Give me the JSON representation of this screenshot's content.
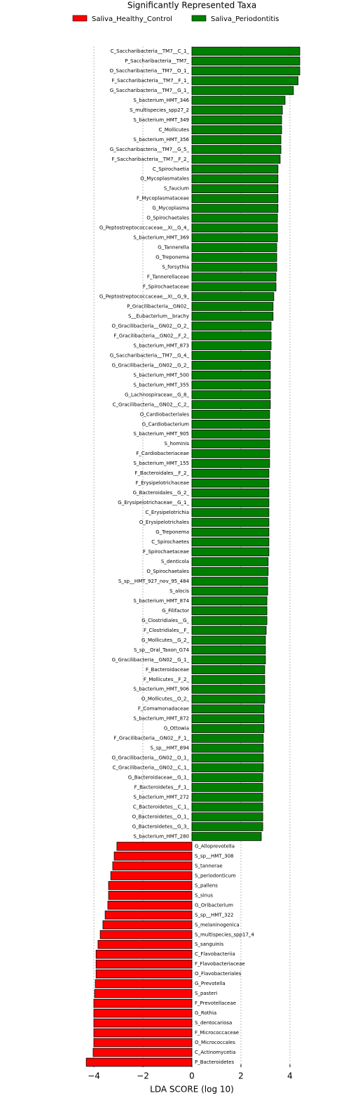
{
  "chart_data": {
    "type": "bar",
    "orientation": "horizontal",
    "title": "Significantly Represented Taxa",
    "x_label": "LDA SCORE (log 10)",
    "categories": [
      "C_Saccharibacteria__TM7__C_1_",
      "P_Saccharibacteria__TM7_",
      "O_Saccharibacteria__TM7__O_1_",
      "F_Saccharibacteria__TM7__F_1_",
      "G_Saccharibacteria__TM7__G_1_",
      "S_bacterium_HMT_346",
      "S_multispecies_spp27_2",
      "S_bacterium_HMT_349",
      "C_Mollicutes",
      "S_bacterium_HMT_356",
      "G_Saccharibacteria__TM7__G_5_",
      "F_Saccharibacteria__TM7__F_2_",
      "C_Spirochaetia",
      "O_Mycoplasmatales",
      "S_faucium",
      "F_Mycoplasmataceae",
      "G_Mycoplasma",
      "O_Spirochaetales",
      "G_Peptostreptococcaceae__XI__G_4_",
      "S_bacterium_HMT_369",
      "G_Tannerella",
      "G_Treponema",
      "S_forsythia",
      "F_Tannerellaceae",
      "F_Spirochaetaceae",
      "G_Peptostreptococcaceae__XI__G_9_",
      "P_Gracilibacteria__GN02_",
      "S__Eubacterium__brachy",
      "O_Gracilibacteria__GN02__O_2_",
      "F_Gracilibacteria__GN02__F_2_",
      "S_bacterium_HMT_873",
      "G_Saccharibacteria__TM7__G_4_",
      "G_Gracilibacteria__GN02__G_2_",
      "S_bacterium_HMT_500",
      "S_bacterium_HMT_355",
      "G_Lachnospiraceae__G_8_",
      "C_Gracilibacteria__GN02__C_2_",
      "O_Cardiobacteriales",
      "G_Cardiobacterium",
      "S_bacterium_HMT_905",
      "S_hominis",
      "F_Cardiobacteriaceae",
      "S_bacterium_HMT_155",
      "F_Bacteroidales__F_2_",
      "F_Erysipelotrichaceae",
      "G_Bacteroidales__G_2_",
      "G_Erysipelotrichaceae__G_1_",
      "C_Erysipelotrichia",
      "O_Erysipelotrichales",
      "G_Treponema",
      "C_Spirochaetes",
      "F_Spirochaetaceae",
      "S_denticola",
      "O_Spirochaetales",
      "S_sp__HMT_927_nov_95_484",
      "S_alocis",
      "S_bacterium_HMT_874",
      "G_Filifactor",
      "G_Clostridiales__G_",
      "F_Clostridiales__F_",
      "G_Mollicutes__G_2_",
      "S_sp__Oral_Taxon_G74",
      "G_Gracilibacteria__GN02__G_1_",
      "F_Bacteroidaceae",
      "F_Mollicutes__F_2_",
      "S_bacterium_HMT_906",
      "O_Mollicutes__O_2_",
      "F_Comamonadaceae",
      "S_bacterium_HMT_872",
      "G_Ottowia",
      "F_Gracilibacteria__GN02__F_1_",
      "S_sp__HMT_894",
      "O_Gracilibacteria__GN02__O_1_",
      "C_Gracilibacteria__GN02__C_1_",
      "G_Bacteroidaceae__G_1_",
      "F_Bacteroidetes__F_1_",
      "S_bacterium_HMT_272",
      "C_Bacteroidetes__C_1_",
      "O_Bacteroidetes__O_1_",
      "G_Bacteroidetes__G_3_",
      "S_bacterium_HMT_280",
      "G_Alloprevotella",
      "S_sp__HMT_308",
      "S_tannerae",
      "S_periodonticum",
      "S_pallens",
      "S_sinus",
      "G_Oribacterium",
      "S_sp__HMT_322",
      "S_melaninogenica",
      "S_multispecies_spp17_4",
      "S_sanguinis",
      "C_Flavobacteriia",
      "F_Flavobacteriaceae",
      "O_Flavobacteriales",
      "G_Prevotella",
      "S_pasteri",
      "F_Prevotellaceae",
      "G_Rothia",
      "S_dentocariosa",
      "F_Micrococcaceae",
      "O_Micrococcales",
      "C_Actinomycetia",
      "P_Bacteroidetes"
    ],
    "series": [
      {
        "name": "Saliva_Healthy_Control",
        "color": "#ff0000",
        "values": [
          null,
          null,
          null,
          null,
          null,
          null,
          null,
          null,
          null,
          null,
          null,
          null,
          null,
          null,
          null,
          null,
          null,
          null,
          null,
          null,
          null,
          null,
          null,
          null,
          null,
          null,
          null,
          null,
          null,
          null,
          null,
          null,
          null,
          null,
          null,
          null,
          null,
          null,
          null,
          null,
          null,
          null,
          null,
          null,
          null,
          null,
          null,
          null,
          null,
          null,
          null,
          null,
          null,
          null,
          null,
          null,
          null,
          null,
          null,
          null,
          null,
          null,
          null,
          null,
          null,
          null,
          null,
          null,
          null,
          null,
          null,
          null,
          null,
          null,
          null,
          null,
          null,
          null,
          null,
          null,
          null,
          -3.06,
          -3.17,
          -3.23,
          -3.31,
          -3.4,
          -3.4,
          -3.43,
          -3.54,
          -3.63,
          -3.74,
          -3.83,
          -3.91,
          -3.91,
          -3.91,
          -3.94,
          -3.97,
          -4.0,
          -4.0,
          -4.0,
          -4.0,
          -4.0,
          -4.03,
          -4.31
        ]
      },
      {
        "name": "Saliva_Periodontitis",
        "color": "#008000",
        "values": [
          4.4,
          4.4,
          4.4,
          4.33,
          4.14,
          3.8,
          3.69,
          3.66,
          3.66,
          3.63,
          3.63,
          3.6,
          3.51,
          3.51,
          3.51,
          3.51,
          3.51,
          3.49,
          3.49,
          3.49,
          3.46,
          3.46,
          3.46,
          3.43,
          3.43,
          3.34,
          3.31,
          3.31,
          3.23,
          3.23,
          3.23,
          3.2,
          3.2,
          3.2,
          3.2,
          3.2,
          3.2,
          3.17,
          3.17,
          3.17,
          3.17,
          3.17,
          3.17,
          3.14,
          3.14,
          3.14,
          3.14,
          3.14,
          3.14,
          3.14,
          3.14,
          3.14,
          3.11,
          3.11,
          3.09,
          3.09,
          3.06,
          3.06,
          3.06,
          3.03,
          3.0,
          3.0,
          3.0,
          2.97,
          2.97,
          2.97,
          2.97,
          2.94,
          2.94,
          2.94,
          2.91,
          2.91,
          2.91,
          2.91,
          2.89,
          2.89,
          2.89,
          2.89,
          2.89,
          2.89,
          2.83,
          null,
          null,
          null,
          null,
          null,
          null,
          null,
          null,
          null,
          null,
          null,
          null,
          null,
          null,
          null,
          null,
          null,
          null,
          null,
          null,
          null,
          null,
          null
        ]
      }
    ],
    "xlim": [
      -4.6,
      4.6
    ],
    "xticks": [
      {
        "value": -4,
        "label": "−4"
      },
      {
        "value": -2,
        "label": "−2"
      },
      0,
      2,
      4
    ],
    "grid": true,
    "legend": "top"
  }
}
